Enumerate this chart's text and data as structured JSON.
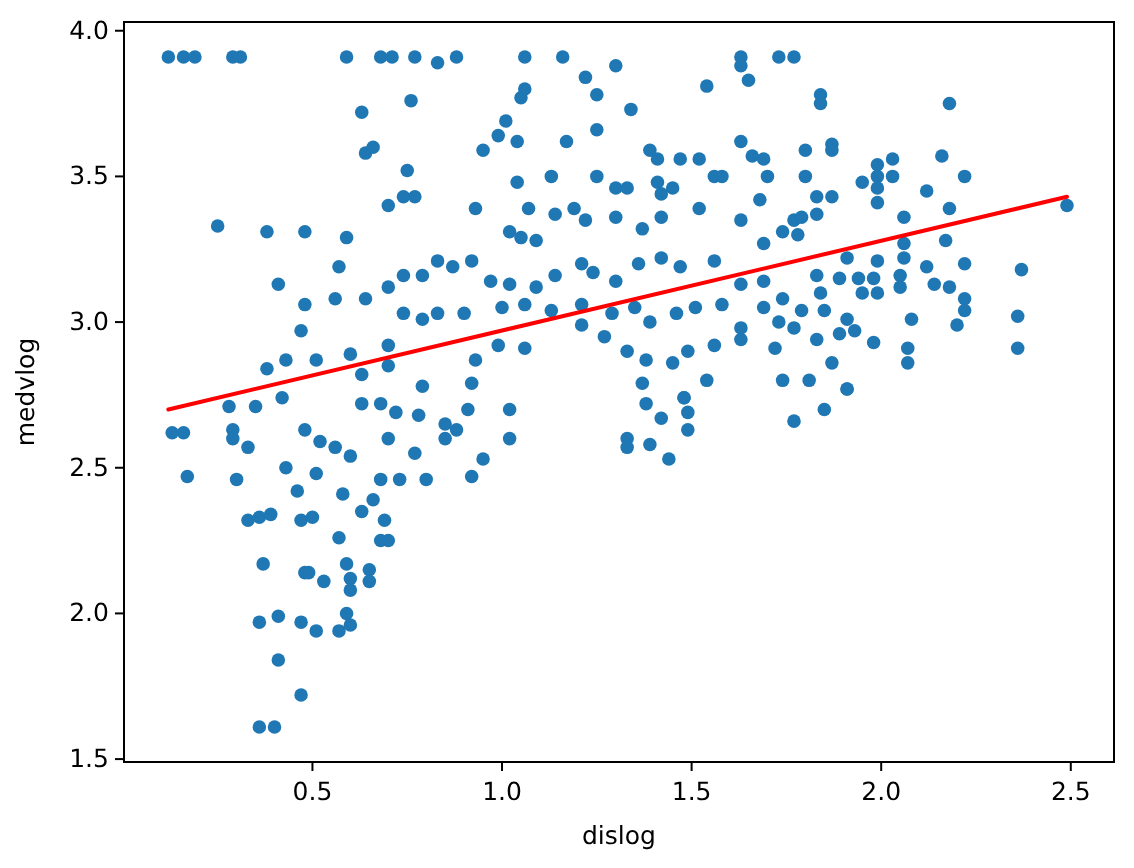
{
  "chart_data": {
    "type": "scatter",
    "xlabel": "dislog",
    "ylabel": "medvlog",
    "xlim": [
      0.003,
      2.614
    ],
    "ylim": [
      1.49,
      4.03
    ],
    "xticks": [
      0.5,
      {
        "value": 1,
        "label": "1.0"
      },
      1.5,
      {
        "value": 2,
        "label": "2.0"
      },
      2.5
    ],
    "yticks": [
      1.5,
      {
        "value": 2,
        "label": "2.0"
      },
      2.5,
      {
        "value": 3,
        "label": "3.0"
      },
      3.5,
      {
        "value": 4,
        "label": "4.0"
      }
    ],
    "line_style": "solid",
    "series": [
      {
        "marker": "circle",
        "color": "#1f77b4",
        "x": [
          0.12,
          0.16,
          0.19,
          0.29,
          0.31,
          0.59,
          0.68,
          0.71,
          0.77,
          0.83,
          0.88,
          1.06,
          1.16,
          1.63,
          1.73,
          1.77,
          1.63,
          1.65,
          0.63,
          0.76,
          0.64,
          0.66,
          0.75,
          0.7,
          0.74,
          0.77,
          0.25,
          0.38,
          0.48,
          0.59,
          0.57,
          0.41,
          0.48,
          0.47,
          0.56,
          0.64,
          0.7,
          0.74,
          0.79,
          0.83,
          0.7,
          0.74,
          0.79,
          0.83,
          0.38,
          0.43,
          0.51,
          0.6,
          0.63,
          0.7,
          0.79,
          0.13,
          0.16,
          0.17,
          0.28,
          0.29,
          0.29,
          0.33,
          0.3,
          0.33,
          0.36,
          0.39,
          0.37,
          0.36,
          0.36,
          0.4,
          0.41,
          0.47,
          0.41,
          0.47,
          0.51,
          0.57,
          0.48,
          0.49,
          0.53,
          0.59,
          0.6,
          0.6,
          0.59,
          0.6,
          0.65,
          0.65,
          0.57,
          0.47,
          0.5,
          0.46,
          0.43,
          0.51,
          0.58,
          0.48,
          0.52,
          0.56,
          0.6,
          0.63,
          0.66,
          0.69,
          0.68,
          0.7,
          0.68,
          0.73,
          0.8,
          0.63,
          0.68,
          0.72,
          0.78,
          0.85,
          0.7,
          0.77,
          0.85,
          0.35,
          0.42,
          0.92,
          0.95,
          1.02,
          1.02,
          0.88,
          0.91,
          1.33,
          1.33,
          1.39,
          1.42,
          1.44,
          1.48,
          1.49,
          1.49,
          1.38,
          1.77,
          1.85,
          1.91,
          1.22,
          1.3,
          1.25,
          1.34,
          1.06,
          1.05,
          1.01,
          0.99,
          0.95,
          1.04,
          1.17,
          1.25,
          1.54,
          1.39,
          1.41,
          1.47,
          1.52,
          1.63,
          1.66,
          1.69,
          1.7,
          1.56,
          1.58,
          1.13,
          1.04,
          0.93,
          1.07,
          1.25,
          1.3,
          1.33,
          1.41,
          1.45,
          1.42,
          1.52,
          1.68,
          1.14,
          1.19,
          1.22,
          1.3,
          1.37,
          1.42,
          1.63,
          1.74,
          1.77,
          1.02,
          1.09,
          1.05,
          1.69,
          0.87,
          0.92,
          0.97,
          1.02,
          1.09,
          1.14,
          1.21,
          1.24,
          1.3,
          1.36,
          1.42,
          1.47,
          1.56,
          1.63,
          1.69,
          1.74,
          0.9,
          1.0,
          1.06,
          1.13,
          1.21,
          1.29,
          1.35,
          1.39,
          1.46,
          1.51,
          1.58,
          1.63,
          1.69,
          1.73,
          0.93,
          0.99,
          1.06,
          1.21,
          1.27,
          1.33,
          1.38,
          1.45,
          1.49,
          1.56,
          1.63,
          1.72,
          0.92,
          1.37,
          1.48,
          1.54,
          1.74,
          1.84,
          1.84,
          2.18,
          1.8,
          1.87,
          1.87,
          1.8,
          1.83,
          1.87,
          1.95,
          1.99,
          1.99,
          1.99,
          2.03,
          2.03,
          2.16,
          2.22,
          2.12,
          1.99,
          2.18,
          2.06,
          1.79,
          1.83,
          1.78,
          2.49,
          2.17,
          2.06,
          1.91,
          1.99,
          2.06,
          1.83,
          1.89,
          1.94,
          1.98,
          2.05,
          2.12,
          2.22,
          2.37,
          2.14,
          2.18,
          1.84,
          1.95,
          1.99,
          2.05,
          2.22,
          1.79,
          1.85,
          1.91,
          2.08,
          2.22,
          1.77,
          1.83,
          1.89,
          1.93,
          1.98,
          2.07,
          2.2,
          2.36,
          2.36,
          1.87,
          2.07,
          1.81,
          1.91
        ],
        "values": [
          3.91,
          3.91,
          3.91,
          3.91,
          3.91,
          3.91,
          3.91,
          3.91,
          3.91,
          3.89,
          3.91,
          3.91,
          3.91,
          3.91,
          3.91,
          3.91,
          3.88,
          3.83,
          3.72,
          3.76,
          3.58,
          3.6,
          3.52,
          3.4,
          3.43,
          3.43,
          3.33,
          3.31,
          3.31,
          3.29,
          3.19,
          3.13,
          3.06,
          2.97,
          3.08,
          3.08,
          3.12,
          3.03,
          3.01,
          3.03,
          2.92,
          3.16,
          3.16,
          3.21,
          2.84,
          2.87,
          2.87,
          2.89,
          2.82,
          2.85,
          2.78,
          2.62,
          2.62,
          2.47,
          2.71,
          2.63,
          2.6,
          2.57,
          2.46,
          2.32,
          2.33,
          2.34,
          2.17,
          1.97,
          1.61,
          1.61,
          1.84,
          1.72,
          1.99,
          1.97,
          1.94,
          1.94,
          2.14,
          2.14,
          2.11,
          2.17,
          2.12,
          2.08,
          2.0,
          1.96,
          2.15,
          2.11,
          2.26,
          2.32,
          2.33,
          2.42,
          2.5,
          2.48,
          2.41,
          2.63,
          2.59,
          2.57,
          2.54,
          2.35,
          2.39,
          2.32,
          2.25,
          2.25,
          2.46,
          2.46,
          2.46,
          2.72,
          2.72,
          2.69,
          2.68,
          2.65,
          2.6,
          2.55,
          2.6,
          2.71,
          2.74,
          2.47,
          2.53,
          2.7,
          2.6,
          2.63,
          2.7,
          2.6,
          2.57,
          2.58,
          2.67,
          2.53,
          2.74,
          2.69,
          2.63,
          2.72,
          2.66,
          2.7,
          2.77,
          3.84,
          3.88,
          3.78,
          3.73,
          3.8,
          3.77,
          3.69,
          3.64,
          3.59,
          3.62,
          3.62,
          3.66,
          3.81,
          3.59,
          3.56,
          3.56,
          3.56,
          3.62,
          3.57,
          3.56,
          3.5,
          3.5,
          3.5,
          3.5,
          3.48,
          3.39,
          3.39,
          3.5,
          3.46,
          3.46,
          3.48,
          3.46,
          3.44,
          3.39,
          3.42,
          3.37,
          3.39,
          3.35,
          3.36,
          3.32,
          3.36,
          3.35,
          3.31,
          3.35,
          3.31,
          3.28,
          3.29,
          3.27,
          3.19,
          3.21,
          3.14,
          3.13,
          3.12,
          3.16,
          3.2,
          3.17,
          3.14,
          3.2,
          3.22,
          3.19,
          3.21,
          3.13,
          3.14,
          3.08,
          3.03,
          3.05,
          3.06,
          3.04,
          3.06,
          3.03,
          3.05,
          3.0,
          3.03,
          3.05,
          3.06,
          2.98,
          3.05,
          3.0,
          2.87,
          2.92,
          2.91,
          2.99,
          2.95,
          2.9,
          2.87,
          2.86,
          2.9,
          2.92,
          2.94,
          2.91,
          2.79,
          2.79,
          2.74,
          2.8,
          2.8,
          3.78,
          3.75,
          3.75,
          3.59,
          3.61,
          3.59,
          3.5,
          3.43,
          3.43,
          3.48,
          3.54,
          3.5,
          3.46,
          3.56,
          3.5,
          3.57,
          3.5,
          3.45,
          3.41,
          3.39,
          3.36,
          3.36,
          3.37,
          3.3,
          3.4,
          3.28,
          3.27,
          3.22,
          3.21,
          3.22,
          3.16,
          3.15,
          3.15,
          3.15,
          3.16,
          3.19,
          3.2,
          3.18,
          3.13,
          3.12,
          3.1,
          3.1,
          3.1,
          3.12,
          3.08,
          3.04,
          3.04,
          3.01,
          3.01,
          3.04,
          2.98,
          2.94,
          2.96,
          2.97,
          2.93,
          2.91,
          2.99,
          3.02,
          2.91,
          2.86,
          2.86,
          2.8,
          2.77
        ]
      },
      {
        "type": "line",
        "marker": "none",
        "color": "#ff0000",
        "x": [
          0.12,
          2.49
        ],
        "values": [
          2.7,
          3.43
        ]
      }
    ]
  }
}
